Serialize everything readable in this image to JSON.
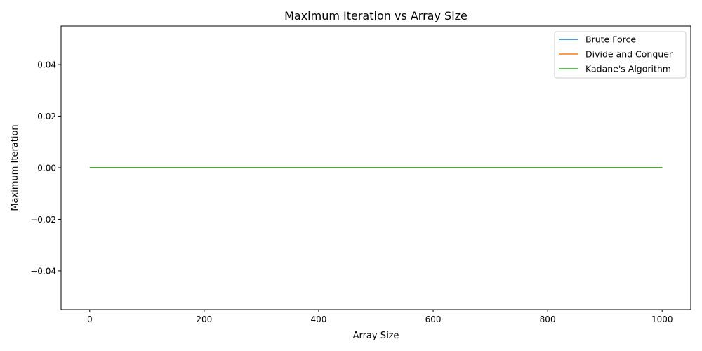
{
  "chart_data": {
    "type": "line",
    "title": "Maximum Iteration vs Array Size",
    "xlabel": "Array Size",
    "ylabel": "Maximum Iteration",
    "xlim": [
      -50,
      1050
    ],
    "ylim": [
      -0.055,
      0.055
    ],
    "xticks": [
      0,
      200,
      400,
      600,
      800,
      1000
    ],
    "xtick_labels": [
      "0",
      "200",
      "400",
      "600",
      "800",
      "1000"
    ],
    "yticks": [
      -0.04,
      -0.02,
      0.0,
      0.02,
      0.04
    ],
    "ytick_labels": [
      "−0.04",
      "−0.02",
      "0.00",
      "0.02",
      "0.04"
    ],
    "grid": false,
    "legend_position": "top-right",
    "series": [
      {
        "name": "Brute Force",
        "color": "#1f77b4",
        "x": [
          0,
          1000
        ],
        "y": [
          0,
          0
        ]
      },
      {
        "name": "Divide and Conquer",
        "color": "#ff7f0e",
        "x": [
          0,
          1000
        ],
        "y": [
          0,
          0
        ]
      },
      {
        "name": "Kadane's Algorithm",
        "color": "#2ca02c",
        "x": [
          0,
          1000
        ],
        "y": [
          0,
          0
        ]
      }
    ]
  }
}
